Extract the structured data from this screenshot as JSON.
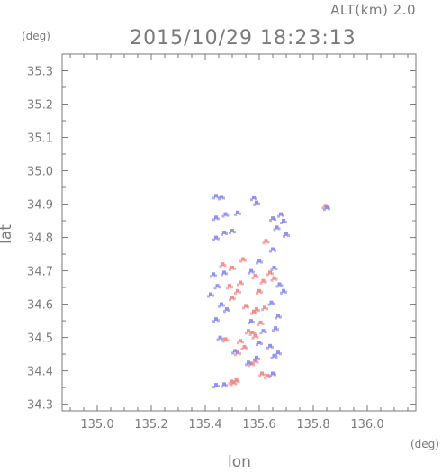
{
  "header": {
    "altitude": "ALT(km) 2.0",
    "datetime": "2015/10/29 18:23:13"
  },
  "chart_data": {
    "type": "scatter",
    "title": "2015/10/29 18:23:13",
    "subtitle": "ALT(km) 2.0",
    "xlabel": "lon",
    "ylabel": "lat",
    "x_unit": "(deg)",
    "y_unit": "(deg)",
    "xlim": [
      134.87,
      136.18
    ],
    "ylim": [
      34.28,
      35.35
    ],
    "x_ticks": [
      "135.0",
      "135.2",
      "135.4",
      "135.6",
      "135.8",
      "136.0"
    ],
    "y_ticks": [
      "34.3",
      "34.4",
      "34.5",
      "34.6",
      "34.7",
      "34.8",
      "34.9",
      "35.0",
      "35.1",
      "35.2",
      "35.3"
    ],
    "grid": false,
    "colors": {
      "red": "#f08a8a",
      "blue": "#8c8cf2",
      "axis": "#7a7a7a"
    },
    "series": [
      {
        "color": "red",
        "points": [
          [
            135.505,
            34.365
          ],
          [
            135.515,
            34.372
          ],
          [
            135.498,
            34.368
          ],
          [
            135.63,
            34.385
          ],
          [
            135.61,
            34.392
          ],
          [
            135.57,
            34.422
          ],
          [
            135.585,
            34.43
          ],
          [
            135.52,
            34.455
          ],
          [
            135.545,
            34.472
          ],
          [
            135.53,
            34.49
          ],
          [
            135.475,
            34.495
          ],
          [
            135.585,
            34.505
          ],
          [
            135.56,
            34.52
          ],
          [
            135.575,
            34.515
          ],
          [
            135.605,
            34.545
          ],
          [
            135.58,
            34.578
          ],
          [
            135.59,
            34.585
          ],
          [
            135.62,
            34.59
          ],
          [
            135.55,
            34.595
          ],
          [
            135.5,
            34.62
          ],
          [
            135.52,
            34.64
          ],
          [
            135.49,
            34.655
          ],
          [
            135.53,
            34.665
          ],
          [
            135.6,
            34.64
          ],
          [
            135.615,
            34.67
          ],
          [
            135.585,
            34.685
          ],
          [
            135.655,
            34.678
          ],
          [
            135.64,
            34.695
          ],
          [
            135.5,
            34.71
          ],
          [
            135.54,
            34.735
          ],
          [
            135.625,
            34.79
          ],
          [
            135.845,
            34.895
          ],
          [
            135.465,
            34.72
          ]
        ]
      },
      {
        "color": "blue",
        "points": [
          [
            135.47,
            34.36
          ],
          [
            135.44,
            34.358
          ],
          [
            135.65,
            34.392
          ],
          [
            135.56,
            34.425
          ],
          [
            135.59,
            34.44
          ],
          [
            135.655,
            34.445
          ],
          [
            135.67,
            34.455
          ],
          [
            135.51,
            34.46
          ],
          [
            135.64,
            34.475
          ],
          [
            135.6,
            34.485
          ],
          [
            135.455,
            34.5
          ],
          [
            135.615,
            34.52
          ],
          [
            135.66,
            34.528
          ],
          [
            135.57,
            34.55
          ],
          [
            135.44,
            34.555
          ],
          [
            135.67,
            34.565
          ],
          [
            135.48,
            34.585
          ],
          [
            135.645,
            34.605
          ],
          [
            135.42,
            34.63
          ],
          [
            135.445,
            34.655
          ],
          [
            135.46,
            34.6
          ],
          [
            135.69,
            34.64
          ],
          [
            135.675,
            34.66
          ],
          [
            135.47,
            34.695
          ],
          [
            135.57,
            34.7
          ],
          [
            135.43,
            34.69
          ],
          [
            135.655,
            34.71
          ],
          [
            135.6,
            34.73
          ],
          [
            135.65,
            34.765
          ],
          [
            135.44,
            34.8
          ],
          [
            135.47,
            34.815
          ],
          [
            135.5,
            34.82
          ],
          [
            135.44,
            34.86
          ],
          [
            135.475,
            34.87
          ],
          [
            135.52,
            34.875
          ],
          [
            135.65,
            34.858
          ],
          [
            135.68,
            34.87
          ],
          [
            135.665,
            34.83
          ],
          [
            135.69,
            34.85
          ],
          [
            135.44,
            34.925
          ],
          [
            135.46,
            34.922
          ],
          [
            135.59,
            34.905
          ],
          [
            135.58,
            34.92
          ],
          [
            135.7,
            34.81
          ],
          [
            135.85,
            34.89
          ]
        ]
      }
    ]
  }
}
